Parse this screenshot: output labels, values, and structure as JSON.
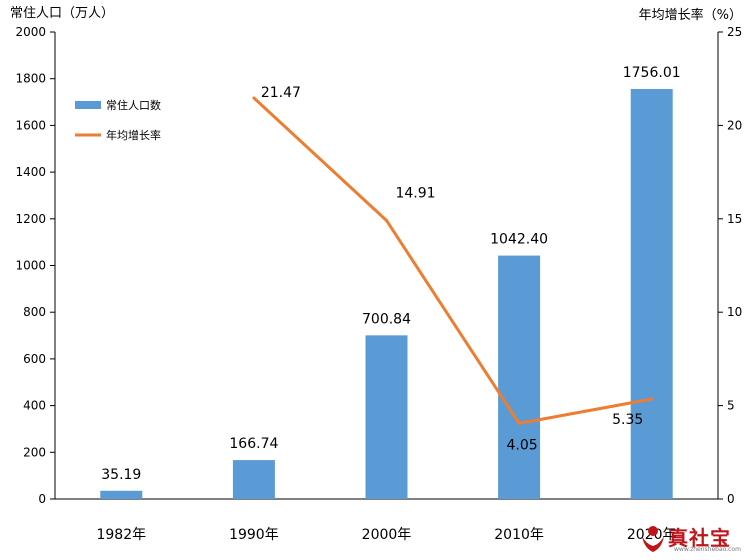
{
  "chart_data": {
    "type": "bar",
    "categories": [
      "1982年",
      "1990年",
      "2000年",
      "2010年",
      "2020年"
    ],
    "series": [
      {
        "name": "常住人口数",
        "kind": "bar",
        "axis": "left",
        "color": "#5b9bd5",
        "values": [
          35.19,
          166.74,
          700.84,
          1042.4,
          1756.01
        ],
        "labels": [
          "35.19",
          "166.74",
          "700.84",
          "1042.40",
          "1756.01"
        ]
      },
      {
        "name": "年均增长率",
        "kind": "line",
        "axis": "right",
        "color": "#ed7d31",
        "values": [
          null,
          21.47,
          14.91,
          4.05,
          5.35
        ],
        "labels": [
          "",
          "21.47",
          "14.91",
          "4.05",
          "5.35"
        ]
      }
    ],
    "ylabel_left": "常住人口（万人）",
    "ylabel_right": "年均增长率（%）",
    "ylim_left": [
      0,
      2000
    ],
    "ylim_right": [
      0,
      25
    ],
    "yticks_left": [
      0,
      200,
      400,
      600,
      800,
      1000,
      1200,
      1400,
      1600,
      1800,
      2000
    ],
    "yticks_right": [
      0,
      5,
      10,
      15,
      20,
      25
    ],
    "grid": false,
    "legend_position": "top-left"
  },
  "watermark": {
    "text": "真社宝",
    "sub": "www.zhenshebao.com",
    "icon": "hands-logo-icon"
  }
}
